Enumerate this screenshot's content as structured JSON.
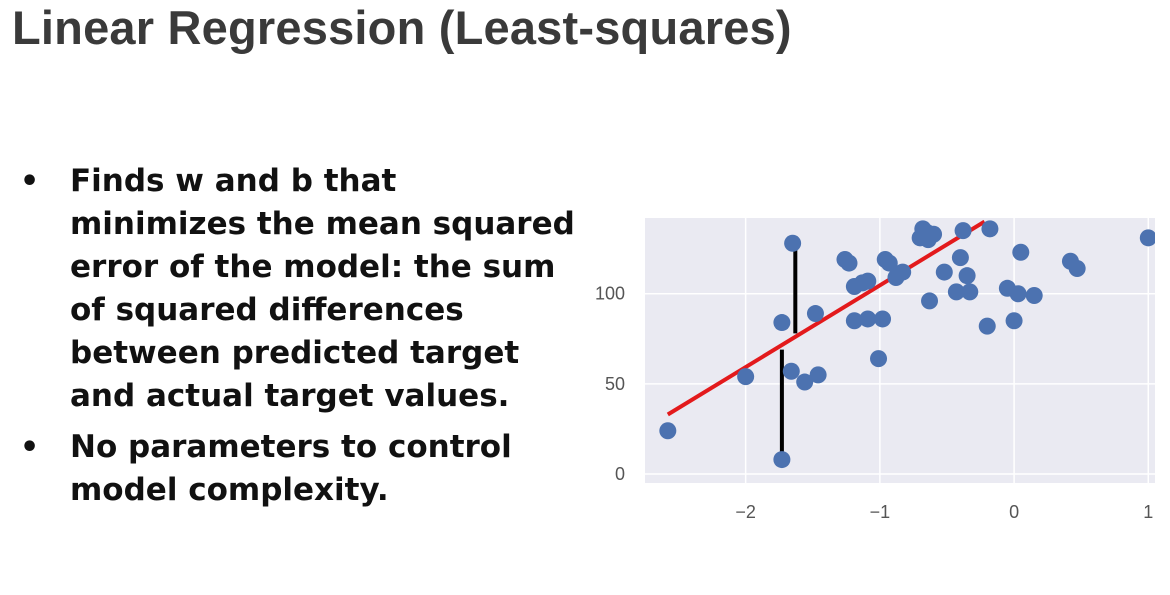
{
  "slide": {
    "title": "Linear Regression (Least-squares)",
    "bullets": [
      "Finds w and b that minimizes the mean squared error of the model: the sum of squared differences between predicted target and actual target values.",
      "No parameters to control model complexity."
    ],
    "bullet_symbol": "•"
  },
  "chart_data": {
    "type": "scatter",
    "title": "",
    "xlabel": "",
    "ylabel": "",
    "xlim": [
      -2.75,
      1.05
    ],
    "ylim": [
      -5,
      142
    ],
    "xticks": [
      -2,
      -1,
      0,
      1
    ],
    "xtick_labels": [
      "−2",
      "−1",
      "0",
      "1"
    ],
    "yticks": [
      0,
      50,
      100
    ],
    "ytick_labels": [
      "0",
      "50",
      "100"
    ],
    "grid": true,
    "background_color": "#eaeaf2",
    "point_color": "#4c72b0",
    "line_color": "#e31a1c",
    "residual_color": "#000000",
    "points": [
      [
        -2.58,
        24
      ],
      [
        -2.0,
        54
      ],
      [
        -1.73,
        84
      ],
      [
        -1.66,
        57
      ],
      [
        -1.56,
        51
      ],
      [
        -1.46,
        55
      ],
      [
        -1.48,
        89
      ],
      [
        -1.73,
        8
      ],
      [
        -1.65,
        128
      ],
      [
        -1.26,
        119
      ],
      [
        -1.23,
        117
      ],
      [
        -1.19,
        104
      ],
      [
        -1.13,
        106
      ],
      [
        -1.09,
        107
      ],
      [
        -1.19,
        85
      ],
      [
        -1.09,
        86
      ],
      [
        -0.98,
        86
      ],
      [
        -1.01,
        64
      ],
      [
        -0.96,
        119
      ],
      [
        -0.93,
        117
      ],
      [
        -0.88,
        109
      ],
      [
        -0.83,
        112
      ],
      [
        -0.7,
        131
      ],
      [
        -0.68,
        136
      ],
      [
        -0.65,
        134
      ],
      [
        -0.64,
        130
      ],
      [
        -0.6,
        133
      ],
      [
        -0.63,
        96
      ],
      [
        -0.52,
        112
      ],
      [
        -0.43,
        101
      ],
      [
        -0.4,
        120
      ],
      [
        -0.35,
        110
      ],
      [
        -0.33,
        101
      ],
      [
        -0.38,
        135
      ],
      [
        -0.18,
        136
      ],
      [
        -0.2,
        82
      ],
      [
        -0.05,
        103
      ],
      [
        0.0,
        85
      ],
      [
        0.03,
        100
      ],
      [
        0.05,
        123
      ],
      [
        0.15,
        99
      ],
      [
        0.42,
        118
      ],
      [
        0.47,
        114
      ],
      [
        1.0,
        131
      ]
    ],
    "regression_line": {
      "x": [
        -2.58,
        -0.22
      ],
      "y": [
        33,
        140
      ]
    },
    "residuals": [
      {
        "x": -1.73,
        "y1": 8,
        "y2": 69
      },
      {
        "x": -1.63,
        "y1": 78,
        "y2": 128
      }
    ]
  }
}
